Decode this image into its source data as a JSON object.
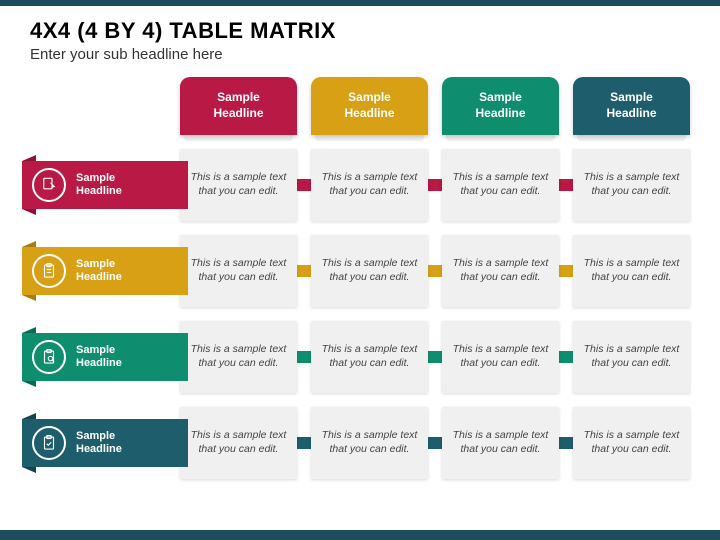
{
  "title": "4X4 (4 BY 4) TABLE MATRIX",
  "subtitle": "Enter your sub headline here",
  "colors": {
    "crimson": "#b81945",
    "crimson_dark": "#8a1234",
    "gold": "#d8a015",
    "gold_dark": "#a87a10",
    "teal": "#0e8e6f",
    "teal_dark": "#0a6b54",
    "navy": "#1d5d6c",
    "navy_dark": "#14424d",
    "header_bar": "#1d4d5c",
    "cell_bg": "#f0f0f0"
  },
  "col_header_text": "Sample\nHeadline",
  "row_header_text": "Sample\nHeadline",
  "cell_text": "This is a sample text that you can edit.",
  "columns": [
    {
      "color": "#b81945"
    },
    {
      "color": "#d8a015"
    },
    {
      "color": "#0e8e6f"
    },
    {
      "color": "#1d5d6c"
    }
  ],
  "rows": [
    {
      "color": "#b81945",
      "dark": "#8a1234",
      "icon": "edit-doc"
    },
    {
      "color": "#d8a015",
      "dark": "#a87a10",
      "icon": "clipboard"
    },
    {
      "color": "#0e8e6f",
      "dark": "#0a6b54",
      "icon": "clipboard-search"
    },
    {
      "color": "#1d5d6c",
      "dark": "#14424d",
      "icon": "clipboard-check"
    }
  ]
}
